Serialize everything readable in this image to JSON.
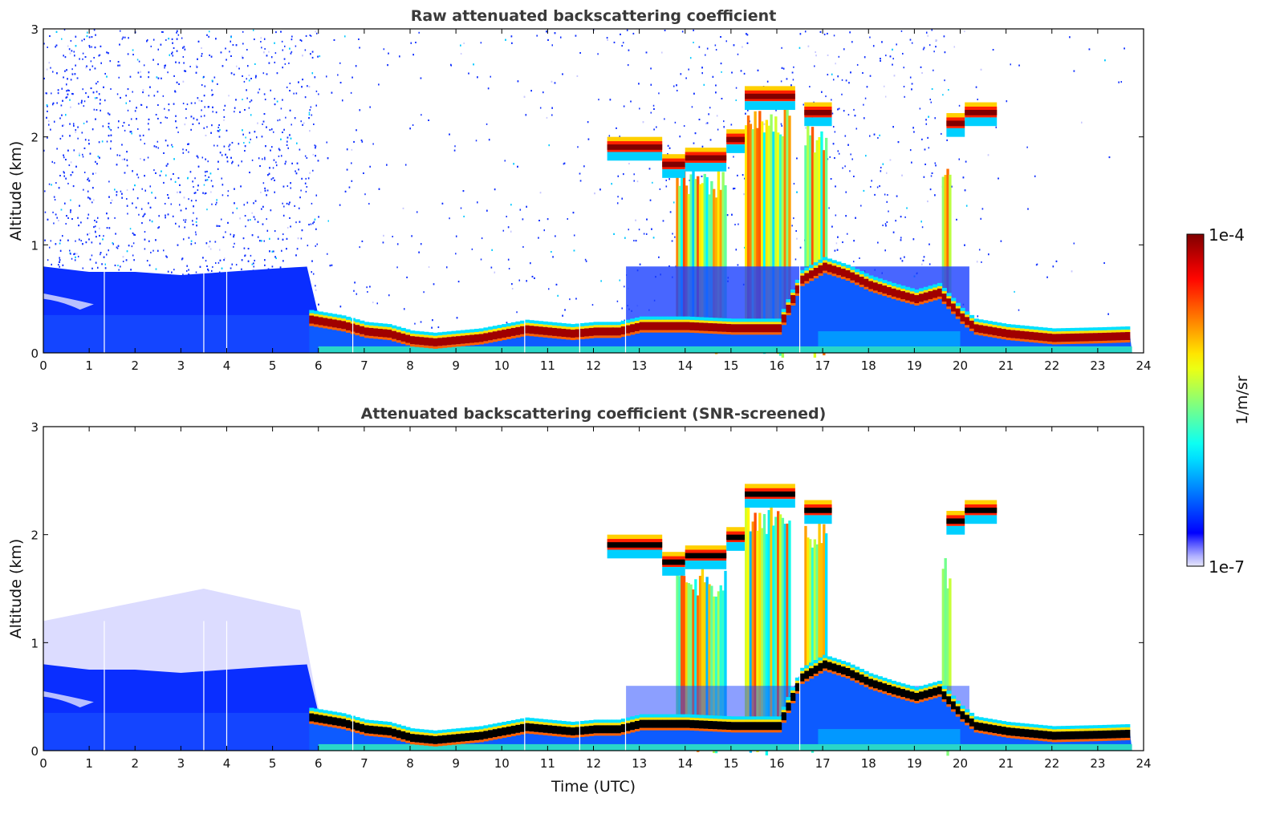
{
  "chart_data": [
    {
      "type": "heatmap",
      "title": "Raw attenuated backscattering coefficient",
      "xlabel": "",
      "ylabel": "Altitude (km)",
      "xlim": [
        0,
        24
      ],
      "ylim": [
        0,
        3
      ],
      "xticks": [
        "0",
        "1",
        "2",
        "3",
        "4",
        "5",
        "6",
        "7",
        "8",
        "9",
        "10",
        "11",
        "12",
        "13",
        "14",
        "15",
        "16",
        "17",
        "18",
        "19",
        "20",
        "21",
        "22",
        "23",
        "24"
      ],
      "yticks": [
        "0",
        "1",
        "2",
        "3"
      ],
      "screened": false
    },
    {
      "type": "heatmap",
      "title": "Attenuated backscattering coefficient (SNR-screened)",
      "xlabel": "Time (UTC)",
      "ylabel": "Altitude (km)",
      "xlim": [
        0,
        24
      ],
      "ylim": [
        0,
        3
      ],
      "xticks": [
        "0",
        "1",
        "2",
        "3",
        "4",
        "5",
        "6",
        "7",
        "8",
        "9",
        "10",
        "11",
        "12",
        "13",
        "14",
        "15",
        "16",
        "17",
        "18",
        "19",
        "20",
        "21",
        "22",
        "23",
        "24"
      ],
      "yticks": [
        "0",
        "1",
        "2",
        "3"
      ],
      "screened": true
    }
  ],
  "features": {
    "residual_layer_top_km": {
      "t": [
        0,
        1,
        2,
        3,
        4,
        5,
        5.8,
        6.0
      ],
      "z": [
        0.8,
        0.75,
        0.75,
        0.72,
        0.75,
        0.78,
        0.8,
        0.35
      ]
    },
    "aerosol_layer_top_km": {
      "t": [
        5.8,
        6.5,
        7,
        7.5,
        8,
        8.5,
        9,
        9.5,
        10,
        10.5,
        11,
        11.5,
        12,
        12.5,
        13,
        14,
        15,
        16,
        16.5,
        17,
        17.5,
        18,
        18.5,
        19,
        19.5,
        20,
        20.3,
        21,
        22,
        23,
        23.75
      ],
      "z": [
        0.33,
        0.28,
        0.22,
        0.2,
        0.14,
        0.12,
        0.14,
        0.16,
        0.2,
        0.24,
        0.22,
        0.2,
        0.22,
        0.22,
        0.27,
        0.27,
        0.25,
        0.25,
        0.7,
        0.82,
        0.75,
        0.65,
        0.58,
        0.52,
        0.58,
        0.35,
        0.25,
        0.2,
        0.16,
        0.17,
        0.18
      ]
    },
    "clouds": [
      {
        "t0": 12.3,
        "t1": 13.5,
        "z": 1.88
      },
      {
        "t0": 13.5,
        "t1": 14.0,
        "z": 1.72
      },
      {
        "t0": 14.0,
        "t1": 14.9,
        "z": 1.78
      },
      {
        "t0": 14.9,
        "t1": 15.3,
        "z": 1.95
      },
      {
        "t0": 15.3,
        "t1": 16.4,
        "z": 2.35
      },
      {
        "t0": 16.6,
        "t1": 17.2,
        "z": 2.2
      },
      {
        "t0": 19.7,
        "t1": 20.1,
        "z": 2.1
      },
      {
        "t0": 20.1,
        "t1": 20.8,
        "z": 2.2
      }
    ],
    "precip_columns": [
      {
        "t0": 13.8,
        "t1": 14.9,
        "z": 1.7
      },
      {
        "t0": 15.3,
        "t1": 16.3,
        "z": 2.3
      },
      {
        "t0": 16.6,
        "t1": 17.1,
        "z": 2.15
      },
      {
        "t0": 19.6,
        "t1": 19.8,
        "z": 1.8
      }
    ]
  },
  "colorbar": {
    "label": "1/m/sr",
    "max_label": "1e-4",
    "min_label": "1e-7",
    "range": [
      1e-07,
      0.0001
    ],
    "scale": "log",
    "colormap": "jet"
  }
}
